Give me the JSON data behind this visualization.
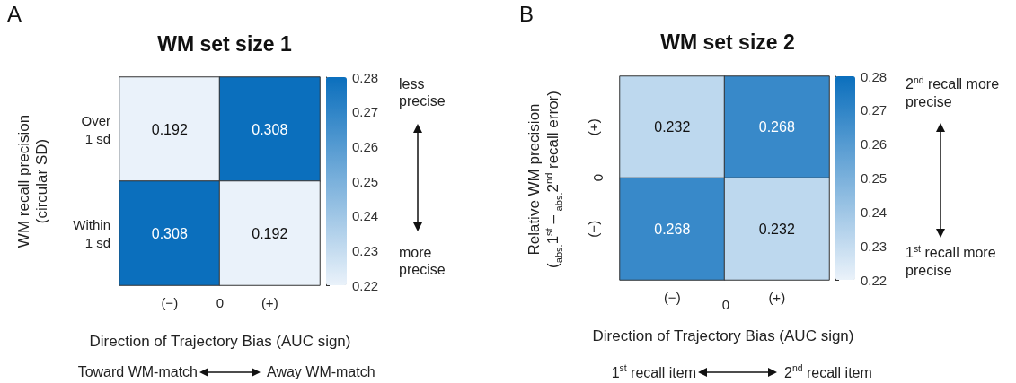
{
  "chart_data": [
    {
      "type": "heatmap",
      "title": "WM set size 1",
      "xlabel": "Direction of Trajectory Bias (AUC sign)",
      "ylabel": "WM recall precision (circular SD)",
      "categories": [
        "(−)",
        "(+)"
      ],
      "y_categories": [
        "Over 1 sd",
        "Within 1 sd"
      ],
      "cells": [
        [
          0.192,
          0.308
        ],
        [
          0.308,
          0.192
        ]
      ],
      "clim": [
        0.22,
        0.28
      ],
      "cticks": [
        0.22,
        0.23,
        0.24,
        0.25,
        0.26,
        0.27,
        0.28
      ],
      "colors": [
        "#eaf2fa",
        "#0b6fbd"
      ],
      "data_labels": true,
      "annotations": [
        "A",
        "0",
        "less precise",
        "more precise",
        "Toward WM-match",
        "Away WM-match"
      ]
    },
    {
      "type": "heatmap",
      "title": "WM set size 2",
      "xlabel": "Direction of Trajectory Bias (AUC sign)",
      "ylabel": "Relative WM precision ($_{abs.}$1$^{st}$ – $_{abs.}$2$^{nd}$ recall error)",
      "categories": [
        "(−)",
        "(+)"
      ],
      "y_categories": [
        "(+)",
        "(−)"
      ],
      "cells": [
        [
          0.232,
          0.268
        ],
        [
          0.268,
          0.232
        ]
      ],
      "clim": [
        0.22,
        0.28
      ],
      "cticks": [
        0.22,
        0.23,
        0.24,
        0.25,
        0.26,
        0.27,
        0.28
      ],
      "colors": [
        "#eaf2fa",
        "#0b6fbd"
      ],
      "data_labels": true,
      "annotations": [
        "B",
        "0",
        "0",
        "2$^{nd}$ recall more precise",
        "1$^{st}$ recall more precise",
        "1$^{st}$ recall item",
        "2$^{nd}$ recall item"
      ]
    }
  ]
}
